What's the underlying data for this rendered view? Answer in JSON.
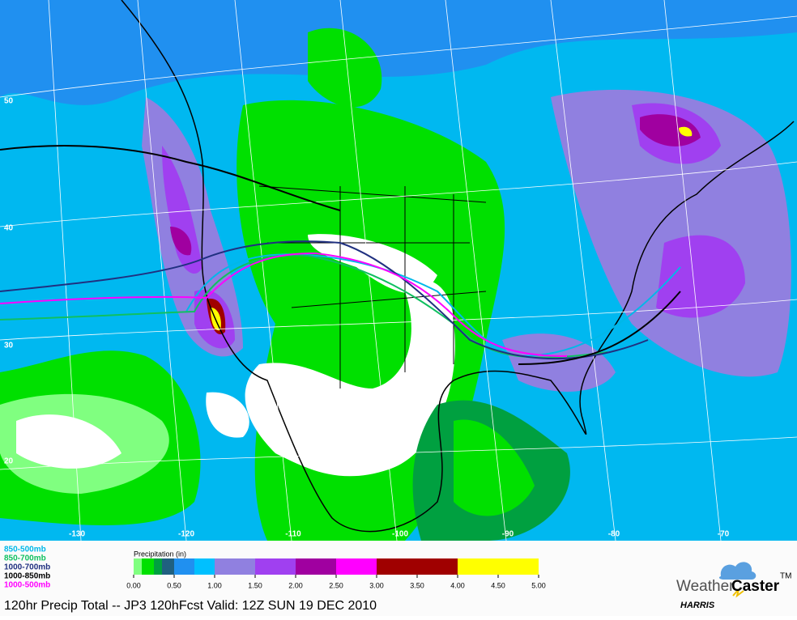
{
  "map": {
    "lat_labels": [
      "50",
      "40",
      "30",
      "20"
    ],
    "lon_labels": [
      "-130",
      "-120",
      "-110",
      "-100",
      "-90",
      "-80",
      "-70"
    ]
  },
  "thickness_legend": [
    {
      "label": "850-500mb",
      "color": "#00b8e8"
    },
    {
      "label": "850-700mb",
      "color": "#10c060"
    },
    {
      "label": "1000-700mb",
      "color": "#203080"
    },
    {
      "label": "1000-850mb",
      "color": "#000000"
    },
    {
      "label": "1000-500mb",
      "color": "#ff00ff"
    }
  ],
  "precip_scale": {
    "title": "Precipitation (in)",
    "min": 0,
    "max": 5,
    "ticks": [
      {
        "value": 0,
        "label": "0.00"
      },
      {
        "value": 0.5,
        "label": "0.50"
      },
      {
        "value": 1,
        "label": "1.00"
      },
      {
        "value": 1.5,
        "label": "1.50"
      },
      {
        "value": 2,
        "label": "2.00"
      },
      {
        "value": 2.5,
        "label": "2.50"
      },
      {
        "value": 3,
        "label": "3.00"
      },
      {
        "value": 3.5,
        "label": "3.50"
      },
      {
        "value": 4,
        "label": "4.00"
      },
      {
        "value": 4.5,
        "label": "4.50"
      },
      {
        "value": 5,
        "label": "5.00"
      }
    ],
    "segments": [
      {
        "from": 0,
        "to": 0.1,
        "color": "#80ff80"
      },
      {
        "from": 0.1,
        "to": 0.25,
        "color": "#00e000"
      },
      {
        "from": 0.25,
        "to": 0.35,
        "color": "#00a040"
      },
      {
        "from": 0.35,
        "to": 0.5,
        "color": "#206080"
      },
      {
        "from": 0.5,
        "to": 0.75,
        "color": "#2090f0"
      },
      {
        "from": 0.75,
        "to": 1,
        "color": "#00c0ff"
      },
      {
        "from": 1,
        "to": 1.5,
        "color": "#9080e0"
      },
      {
        "from": 1.5,
        "to": 2,
        "color": "#a040f0"
      },
      {
        "from": 2,
        "to": 2.5,
        "color": "#a000a0"
      },
      {
        "from": 2.5,
        "to": 3,
        "color": "#ff00ff"
      },
      {
        "from": 3,
        "to": 4,
        "color": "#a00000"
      },
      {
        "from": 4,
        "to": 5,
        "color": "#ffff00"
      }
    ]
  },
  "footer": {
    "title": "120hr Precip Total -- JP3 120hFcst Valid: 12Z SUN 19 DEC 2010"
  },
  "logo": {
    "brand_a": "Weather",
    "brand_b": "Caster",
    "tm": "TM",
    "maker": "HARRIS"
  }
}
